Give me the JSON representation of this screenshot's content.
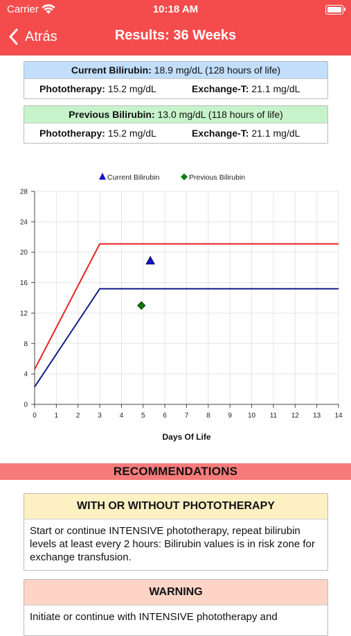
{
  "status_bar": {
    "carrier": "Carrier",
    "time": "10:18 AM"
  },
  "nav": {
    "back_label": "Atrás",
    "title": "Results: 36 Weeks"
  },
  "current": {
    "label": "Current Bilirubin:",
    "value": "18.9 mg/dL (128 hours of life)",
    "phototherapy_label": "Phototherapy:",
    "phototherapy_value": "15.2 mg/dL",
    "exchange_label": "Exchange-T:",
    "exchange_value": "21.1 mg/dL"
  },
  "previous": {
    "label": "Previous Bilirubin:",
    "value": "13.0 mg/dL (118 hours of life)",
    "phototherapy_label": "Phototherapy:",
    "phototherapy_value": "15.2 mg/dL",
    "exchange_label": "Exchange-T:",
    "exchange_value": "21.1 mg/dL"
  },
  "colors": {
    "header": "#f44c4c",
    "current_box_head": "#c2defb",
    "previous_box_head": "#c7f3cb",
    "card_primary_head": "#fdf1c4",
    "card_warning_head": "#fdd4c6",
    "exchange_line": "#e62222",
    "phototherapy_line": "#111b8a",
    "current_marker": "#1515c8",
    "previous_marker": "#0c7a0c"
  },
  "chart_data": {
    "type": "line",
    "xlabel": "Days Of Life",
    "ylabel": "",
    "xlim": [
      0,
      14
    ],
    "ylim": [
      0,
      28
    ],
    "x_ticks": [
      0,
      1,
      2,
      3,
      4,
      5,
      6,
      7,
      8,
      9,
      10,
      11,
      12,
      13,
      14
    ],
    "y_ticks": [
      0,
      4,
      8,
      12,
      16,
      20,
      24,
      28
    ],
    "grid": true,
    "legend_position": "top-center",
    "lines": [
      {
        "x": [
          0,
          3,
          14
        ],
        "y": [
          4.6,
          21.1,
          21.1
        ],
        "color": "#e62222"
      },
      {
        "x": [
          0,
          3,
          14
        ],
        "y": [
          2.3,
          15.2,
          15.2
        ],
        "color": "#111b8a"
      }
    ],
    "points": [
      {
        "name": "Current Bilirubin",
        "x": 5.33,
        "y": 18.9,
        "marker": "triangle",
        "color": "#1515c8"
      },
      {
        "name": "Previous Bilirubin",
        "x": 4.92,
        "y": 13.0,
        "marker": "diamond",
        "color": "#0c7a0c"
      }
    ]
  },
  "recommendations": {
    "title": "RECOMMENDATIONS",
    "cards": [
      {
        "title": "WITH OR WITHOUT PHOTOTHERAPY",
        "text": "Start or continue INTENSIVE phototherapy, repeat bilirubin levels at least every 2 hours: Bilirubin values is in risk zone for exchange transfusion."
      },
      {
        "title": "WARNING",
        "text": "Initiate or continue with INTENSIVE phototherapy and"
      }
    ]
  }
}
